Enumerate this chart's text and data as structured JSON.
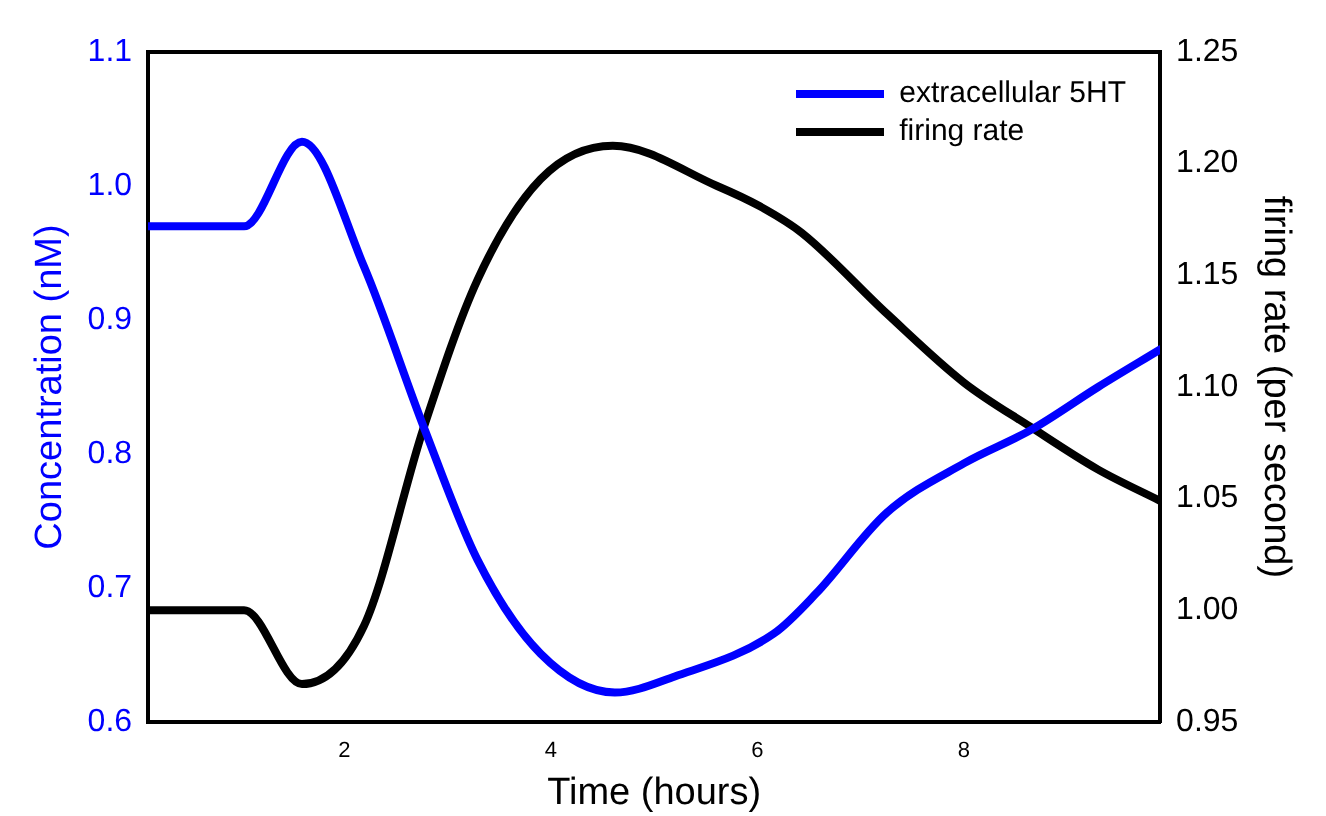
{
  "chart_data": {
    "type": "line",
    "xlabel": "Time (hours)",
    "ylabel": "Concentration (nM)",
    "y2label": "firing rate (per second)",
    "xlim": [
      0.1,
      9.9
    ],
    "xticks": [
      2,
      4,
      6,
      8
    ],
    "ylim": [
      0.6,
      1.1
    ],
    "yticks": [
      0.6,
      0.7,
      0.8,
      0.9,
      {
        "value": 1,
        "label": "1.0"
      },
      1.1
    ],
    "y2lim": [
      0.95,
      1.25
    ],
    "y2ticks": [
      0.95,
      {
        "value": 1,
        "label": "1.00"
      },
      1.05,
      {
        "value": 1.1,
        "label": "1.10"
      },
      1.15,
      {
        "value": 1.2,
        "label": "1.20"
      },
      1.25
    ],
    "legend": "top right",
    "grid": false,
    "marker": "none",
    "line_style": "solid",
    "series": [
      {
        "name": "extracellular 5HT",
        "color": "#0000ff",
        "x": [
          0.1,
          1.03,
          1.59,
          2.19,
          2.77,
          3.29,
          3.9,
          4.62,
          5.2,
          6.16,
          6.57,
          7.25,
          8.0,
          8.65,
          9.3,
          9.9
        ],
        "values": [
          0.97,
          0.97,
          1.033,
          0.94,
          0.82,
          0.721,
          0.651,
          0.622,
          0.634,
          0.666,
          0.696,
          0.756,
          0.793,
          0.818,
          0.85,
          0.878
        ]
      },
      {
        "name": "firing rate",
        "color": "#000000",
        "axis": "y2",
        "x": [
          0.1,
          1.03,
          1.59,
          2.19,
          2.77,
          3.29,
          3.9,
          4.6,
          5.61,
          6.02,
          6.43,
          7.25,
          8.0,
          8.65,
          9.3,
          9.9
        ],
        "values": [
          1.0,
          1.0,
          0.967,
          0.993,
          1.082,
          1.148,
          1.193,
          1.208,
          1.19,
          1.181,
          1.169,
          1.133,
          1.102,
          1.082,
          1.063,
          1.049
        ]
      }
    ]
  }
}
